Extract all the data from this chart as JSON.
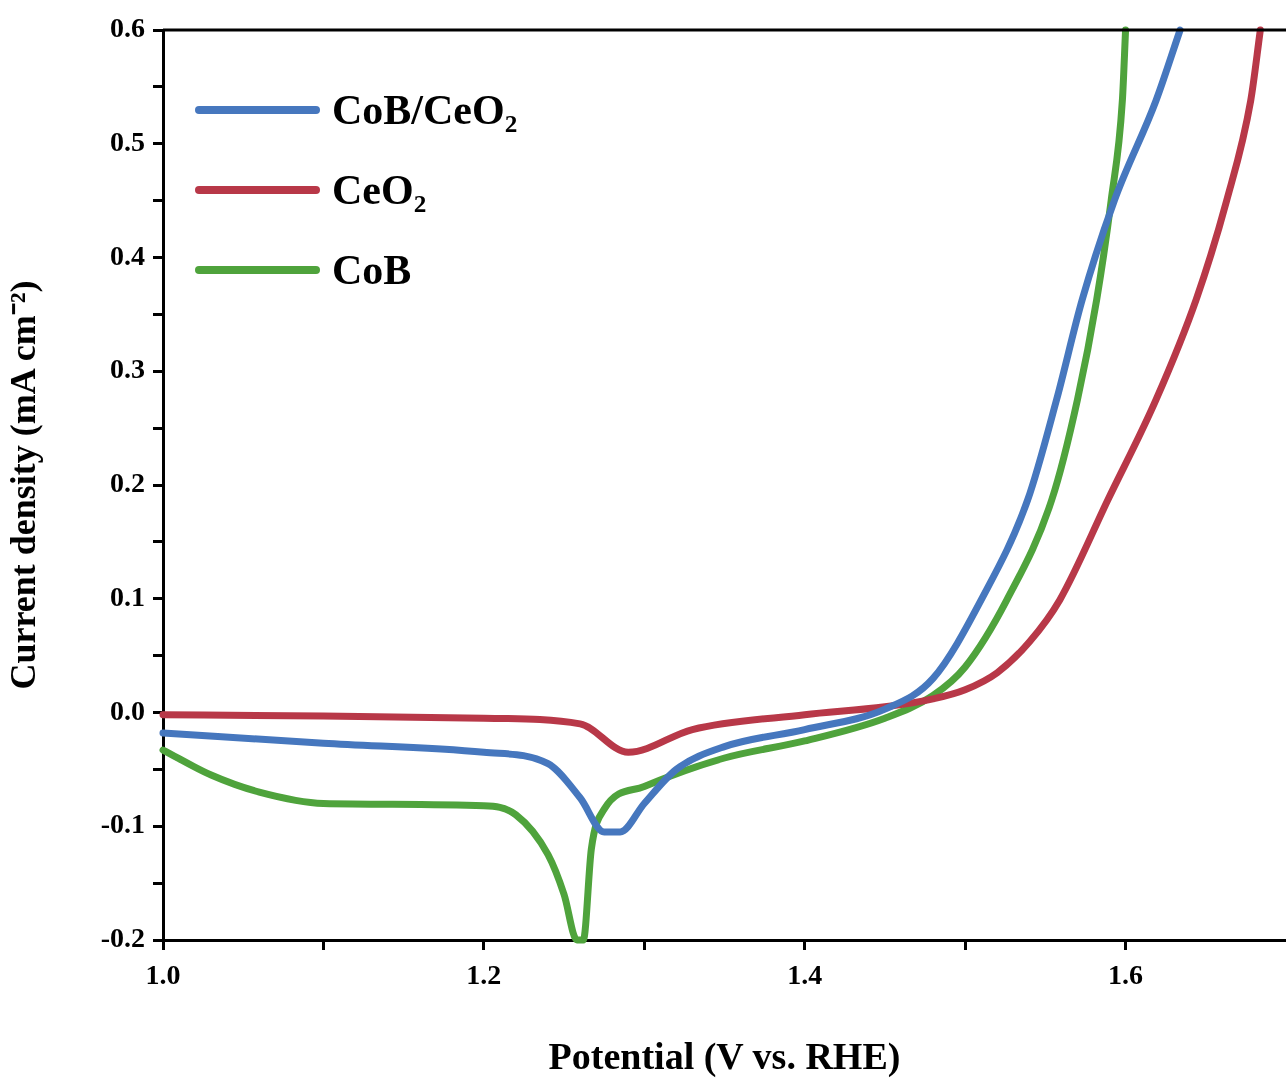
{
  "chart_data": {
    "type": "line",
    "xlabel": "Potential (V vs. RHE)",
    "ylabel": "Current density (mA cm⁻²)",
    "legend": "top left",
    "marker": "none",
    "line_style": "solid",
    "xlim": [
      1.0,
      1.7
    ],
    "ylim": [
      -0.2,
      0.6
    ],
    "xticks": [
      {
        "value": 1.0,
        "label": "1.0"
      },
      {
        "value": 1.1,
        "label": null
      },
      {
        "value": 1.2,
        "label": "1.2"
      },
      {
        "value": 1.3,
        "label": null
      },
      {
        "value": 1.4,
        "label": "1.4"
      },
      {
        "value": 1.5,
        "label": null
      },
      {
        "value": 1.6,
        "label": "1.6"
      }
    ],
    "yticks": [
      {
        "value": -0.2,
        "label": "-0.2"
      },
      {
        "value": -0.15,
        "label": null
      },
      {
        "value": -0.1,
        "label": "-0.1"
      },
      {
        "value": -0.05,
        "label": null
      },
      {
        "value": 0.0,
        "label": "0.0"
      },
      {
        "value": 0.05,
        "label": null
      },
      {
        "value": 0.1,
        "label": "0.1"
      },
      {
        "value": 0.15,
        "label": null
      },
      {
        "value": 0.2,
        "label": "0.2"
      },
      {
        "value": 0.25,
        "label": null
      },
      {
        "value": 0.3,
        "label": "0.3"
      },
      {
        "value": 0.35,
        "label": null
      },
      {
        "value": 0.4,
        "label": "0.4"
      },
      {
        "value": 0.45,
        "label": null
      },
      {
        "value": 0.5,
        "label": "0.5"
      },
      {
        "value": 0.55,
        "label": null
      },
      {
        "value": 0.6,
        "label": "0.6"
      }
    ],
    "series": [
      {
        "name": "CoB/CeO₂",
        "color": "#4677be",
        "x": [
          1.0,
          1.1,
          1.2,
          1.24,
          1.26,
          1.275,
          1.285,
          1.3,
          1.32,
          1.35,
          1.4,
          1.45,
          1.48,
          1.51,
          1.539,
          1.557,
          1.573,
          1.593,
          1.619,
          1.634
        ],
        "values": [
          -0.018,
          -0.027,
          -0.035,
          -0.045,
          -0.075,
          -0.105,
          -0.105,
          -0.08,
          -0.05,
          -0.03,
          -0.015,
          0.003,
          0.03,
          0.099,
          0.187,
          0.275,
          0.363,
          0.45,
          0.538,
          0.6
        ]
      },
      {
        "name": "CeO₂",
        "color": "#b83848",
        "x": [
          1.0,
          1.1,
          1.2,
          1.26,
          1.29,
          1.33,
          1.4,
          1.45,
          1.48,
          1.5,
          1.52,
          1.54,
          1.559,
          1.589,
          1.619,
          1.644,
          1.663,
          1.678,
          1.684
        ],
        "values": [
          -0.002,
          -0.003,
          -0.005,
          -0.01,
          -0.035,
          -0.015,
          -0.002,
          0.005,
          0.012,
          0.02,
          0.035,
          0.062,
          0.099,
          0.187,
          0.275,
          0.363,
          0.45,
          0.538,
          0.6
        ]
      },
      {
        "name": "CoB",
        "color": "#4fa33c",
        "x": [
          1.0,
          1.03,
          1.06,
          1.1,
          1.2,
          1.22,
          1.24,
          1.25,
          1.258,
          1.262,
          1.267,
          1.275,
          1.3,
          1.35,
          1.4,
          1.45,
          1.48,
          1.5,
          1.526,
          1.554,
          1.57,
          1.582,
          1.591,
          1.598,
          1.6
        ],
        "values": [
          -0.033,
          -0.055,
          -0.07,
          -0.08,
          -0.082,
          -0.09,
          -0.125,
          -0.16,
          -0.2,
          -0.2,
          -0.12,
          -0.085,
          -0.065,
          -0.04,
          -0.025,
          -0.005,
          0.015,
          0.04,
          0.099,
          0.187,
          0.275,
          0.363,
          0.45,
          0.538,
          0.6
        ]
      }
    ]
  }
}
